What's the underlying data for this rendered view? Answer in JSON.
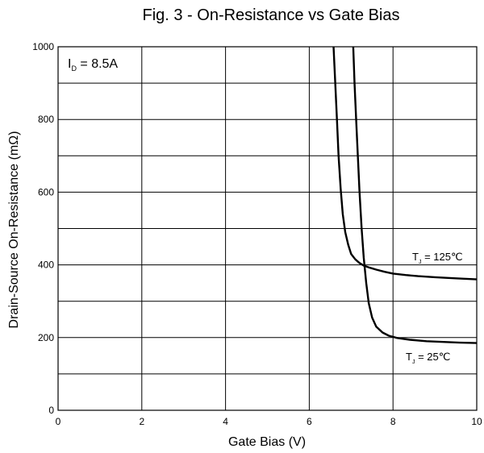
{
  "chart_data": {
    "type": "line",
    "title": "Fig. 3 - On-Resistance vs Gate Bias",
    "xlabel": "Gate Bias  (V)",
    "ylabel": "Drain-Source On-Resistance (mΩ)",
    "xlim": [
      0,
      10
    ],
    "ylim": [
      0,
      1000
    ],
    "x_ticks": [
      "0",
      "2",
      "4",
      "6",
      "8",
      "10"
    ],
    "y_ticks": [
      "0",
      "200",
      "400",
      "600",
      "800",
      "1000"
    ],
    "grid": true,
    "annotations": {
      "id_main": "I",
      "id_sub": "D",
      "id_rest": " = 8.5A"
    },
    "series": [
      {
        "label_main": "T",
        "label_sub": "J",
        "label_rest": " = 125℃",
        "x": [
          6.58,
          6.62,
          6.66,
          6.7,
          6.75,
          6.8,
          6.86,
          6.93,
          7.0,
          7.1,
          7.2,
          7.3,
          7.45,
          7.6,
          7.8,
          8.0,
          8.3,
          8.6,
          9.0,
          9.5,
          10.0
        ],
        "y": [
          1000,
          900,
          800,
          700,
          610,
          540,
          490,
          455,
          430,
          415,
          405,
          398,
          392,
          387,
          381,
          376,
          372,
          369,
          366,
          363,
          360
        ]
      },
      {
        "label_main": "T",
        "label_sub": "J",
        "label_rest": " = 25℃",
        "x": [
          7.05,
          7.08,
          7.12,
          7.16,
          7.2,
          7.25,
          7.3,
          7.36,
          7.42,
          7.5,
          7.6,
          7.75,
          7.9,
          8.1,
          8.4,
          8.8,
          9.2,
          9.6,
          10.0
        ],
        "y": [
          1000,
          900,
          800,
          700,
          600,
          500,
          420,
          350,
          295,
          255,
          230,
          214,
          205,
          199,
          194,
          190,
          188,
          186,
          185
        ]
      }
    ]
  }
}
